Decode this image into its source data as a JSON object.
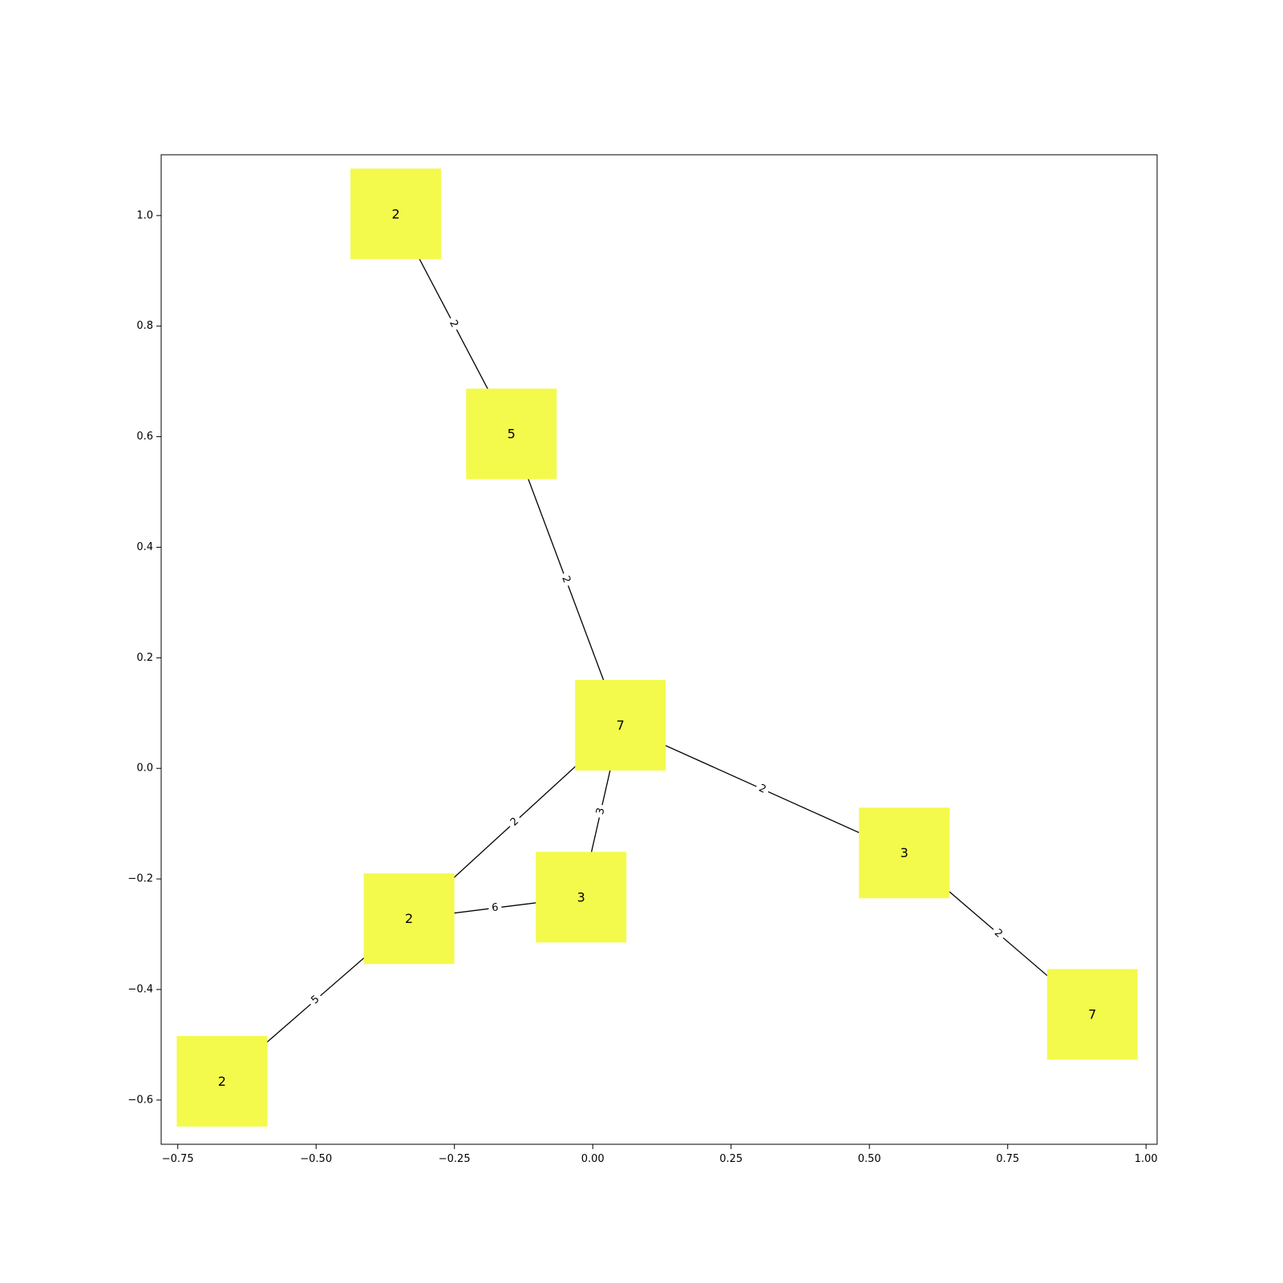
{
  "chart_data": {
    "type": "network",
    "node_color": "#f3fa4c",
    "edge_color": "#000000",
    "xlim": [
      -0.78,
      1.02
    ],
    "ylim": [
      -0.68,
      1.11
    ],
    "x_ticks": [
      {
        "value": -0.75,
        "label": "−0.75"
      },
      {
        "value": -0.5,
        "label": "−0.50"
      },
      {
        "value": -0.25,
        "label": "−0.25"
      },
      {
        "value": 0.0,
        "label": "0.00"
      },
      {
        "value": 0.25,
        "label": "0.25"
      },
      {
        "value": 0.5,
        "label": "0.50"
      },
      {
        "value": 0.75,
        "label": "0.75"
      },
      {
        "value": 1.0,
        "label": "1.00"
      }
    ],
    "y_ticks": [
      {
        "value": 1.0,
        "label": "1.0"
      },
      {
        "value": 0.8,
        "label": "0.8"
      },
      {
        "value": 0.6,
        "label": "0.6"
      },
      {
        "value": 0.4,
        "label": "0.4"
      },
      {
        "value": 0.2,
        "label": "0.2"
      },
      {
        "value": 0.0,
        "label": "0.0"
      },
      {
        "value": -0.2,
        "label": "−0.2"
      },
      {
        "value": -0.4,
        "label": "−0.4"
      },
      {
        "value": -0.6,
        "label": "−0.6"
      }
    ],
    "nodes": [
      {
        "id": "a",
        "label": "2",
        "x": -0.356,
        "y": 1.003
      },
      {
        "id": "b",
        "label": "5",
        "x": -0.147,
        "y": 0.605
      },
      {
        "id": "c",
        "label": "7",
        "x": 0.05,
        "y": 0.078
      },
      {
        "id": "d",
        "label": "3",
        "x": 0.563,
        "y": -0.153
      },
      {
        "id": "e",
        "label": "7",
        "x": 0.903,
        "y": -0.445
      },
      {
        "id": "f",
        "label": "2",
        "x": -0.332,
        "y": -0.272
      },
      {
        "id": "g",
        "label": "3",
        "x": -0.021,
        "y": -0.233
      },
      {
        "id": "h",
        "label": "2",
        "x": -0.67,
        "y": -0.566
      }
    ],
    "edges": [
      {
        "source": "a",
        "target": "b",
        "label": "2"
      },
      {
        "source": "b",
        "target": "c",
        "label": "2"
      },
      {
        "source": "c",
        "target": "d",
        "label": "2"
      },
      {
        "source": "d",
        "target": "e",
        "label": "2"
      },
      {
        "source": "c",
        "target": "f",
        "label": "2"
      },
      {
        "source": "c",
        "target": "g",
        "label": "3"
      },
      {
        "source": "f",
        "target": "g",
        "label": "6"
      },
      {
        "source": "f",
        "target": "h",
        "label": "5"
      }
    ]
  }
}
